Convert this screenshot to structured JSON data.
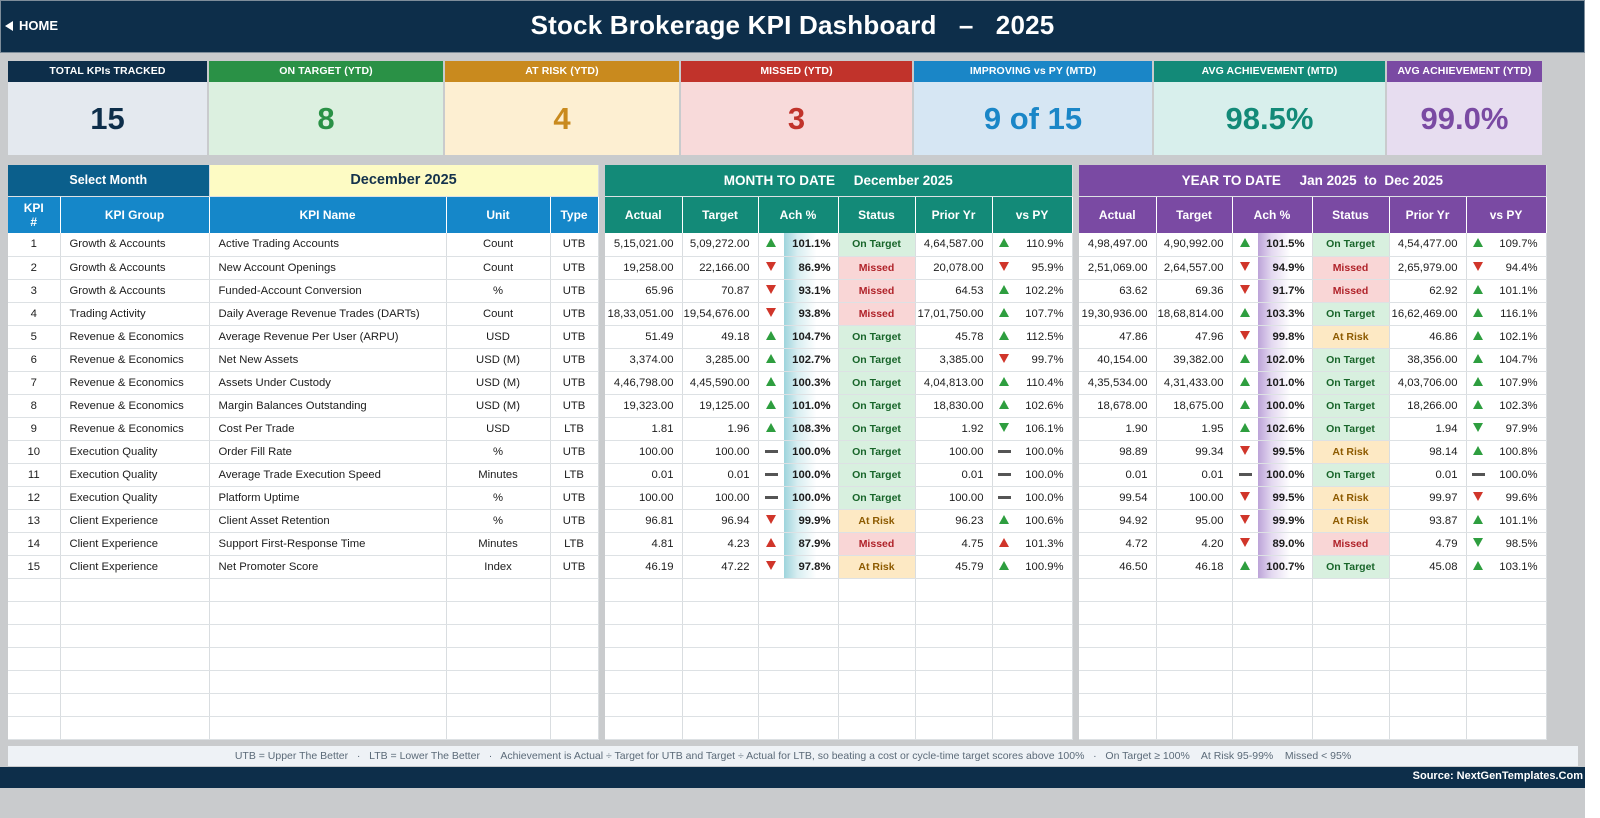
{
  "header": {
    "home_label": "HOME",
    "title": "Stock Brokerage KPI Dashboard   –   2025"
  },
  "cards": [
    {
      "label": "TOTAL KPIs TRACKED",
      "value": "15",
      "header_color": "#0d2e4a",
      "bg_color": "#e4e9ef",
      "value_color": "#0d2e4a"
    },
    {
      "label": "ON TARGET (YTD)",
      "value": "8",
      "header_color": "#2a9146",
      "bg_color": "#dcf0e0",
      "value_color": "#2a9146"
    },
    {
      "label": "AT RISK (YTD)",
      "value": "4",
      "header_color": "#c98a1e",
      "bg_color": "#fdefd2",
      "value_color": "#c98a1e"
    },
    {
      "label": "MISSED (YTD)",
      "value": "3",
      "header_color": "#c1332b",
      "bg_color": "#f8dada",
      "value_color": "#c1332b"
    },
    {
      "label": "IMPROVING vs PY (MTD)",
      "value": "9 of 15",
      "header_color": "#1a86c7",
      "bg_color": "#d6e6f3",
      "value_color": "#1a86c7"
    },
    {
      "label": "AVG ACHIEVEMENT (MTD)",
      "value": "98.5%",
      "header_color": "#138a78",
      "bg_color": "#d8efec",
      "value_color": "#138a78"
    },
    {
      "label": "AVG ACHIEVEMENT (YTD)",
      "value": "99.0%",
      "header_color": "#7a4aa3",
      "bg_color": "#e7ddf0",
      "value_color": "#7a4aa3"
    }
  ],
  "selector": {
    "label": "Select Month",
    "value": "December 2025"
  },
  "left_columns": [
    "KPI\n#",
    "KPI Group",
    "KPI Name",
    "Unit",
    "Type"
  ],
  "mtd": {
    "banner": "MONTH TO DATE     December 2025",
    "columns": [
      "Actual",
      "Target",
      "Ach %",
      "Status",
      "Prior Yr",
      "vs PY"
    ]
  },
  "ytd": {
    "banner": "YEAR TO DATE     Jan 2025  to  Dec 2025",
    "columns": [
      "Actual",
      "Target",
      "Ach %",
      "Status",
      "Prior Yr",
      "vs PY"
    ]
  },
  "rows": [
    {
      "num": "1",
      "group": "Growth & Accounts",
      "name": "Active Trading Accounts",
      "unit": "Count",
      "type": "UTB",
      "mtd": {
        "actual": "5,15,021.00",
        "target": "5,09,272.00",
        "ach_icon": "up",
        "ach": "101.1%",
        "status": "On Target",
        "prior": "4,64,587.00",
        "py_icon": "up",
        "vs_py": "110.9%"
      },
      "ytd": {
        "actual": "4,98,497.00",
        "target": "4,90,992.00",
        "ach_icon": "up",
        "ach": "101.5%",
        "status": "On Target",
        "prior": "4,54,477.00",
        "py_icon": "up",
        "vs_py": "109.7%"
      }
    },
    {
      "num": "2",
      "group": "Growth & Accounts",
      "name": "New Account Openings",
      "unit": "Count",
      "type": "UTB",
      "mtd": {
        "actual": "19,258.00",
        "target": "22,166.00",
        "ach_icon": "down",
        "ach": "86.9%",
        "status": "Missed",
        "prior": "20,078.00",
        "py_icon": "down",
        "vs_py": "95.9%"
      },
      "ytd": {
        "actual": "2,51,069.00",
        "target": "2,64,557.00",
        "ach_icon": "down",
        "ach": "94.9%",
        "status": "Missed",
        "prior": "2,65,979.00",
        "py_icon": "down",
        "vs_py": "94.4%"
      }
    },
    {
      "num": "3",
      "group": "Growth & Accounts",
      "name": "Funded-Account Conversion",
      "unit": "%",
      "type": "UTB",
      "mtd": {
        "actual": "65.96",
        "target": "70.87",
        "ach_icon": "down",
        "ach": "93.1%",
        "status": "Missed",
        "prior": "64.53",
        "py_icon": "up",
        "vs_py": "102.2%"
      },
      "ytd": {
        "actual": "63.62",
        "target": "69.36",
        "ach_icon": "down",
        "ach": "91.7%",
        "status": "Missed",
        "prior": "62.92",
        "py_icon": "up",
        "vs_py": "101.1%"
      }
    },
    {
      "num": "4",
      "group": "Trading Activity",
      "name": "Daily Average Revenue Trades (DARTs)",
      "unit": "Count",
      "type": "UTB",
      "mtd": {
        "actual": "18,33,051.00",
        "target": "19,54,676.00",
        "ach_icon": "down",
        "ach": "93.8%",
        "status": "Missed",
        "prior": "17,01,750.00",
        "py_icon": "up",
        "vs_py": "107.7%"
      },
      "ytd": {
        "actual": "19,30,936.00",
        "target": "18,68,814.00",
        "ach_icon": "up",
        "ach": "103.3%",
        "status": "On Target",
        "prior": "16,62,469.00",
        "py_icon": "up",
        "vs_py": "116.1%"
      }
    },
    {
      "num": "5",
      "group": "Revenue & Economics",
      "name": "Average Revenue Per User (ARPU)",
      "unit": "USD",
      "type": "UTB",
      "mtd": {
        "actual": "51.49",
        "target": "49.18",
        "ach_icon": "up",
        "ach": "104.7%",
        "status": "On Target",
        "prior": "45.78",
        "py_icon": "up",
        "vs_py": "112.5%"
      },
      "ytd": {
        "actual": "47.86",
        "target": "47.96",
        "ach_icon": "down",
        "ach": "99.8%",
        "status": "At Risk",
        "prior": "46.86",
        "py_icon": "up",
        "vs_py": "102.1%"
      }
    },
    {
      "num": "6",
      "group": "Revenue & Economics",
      "name": "Net New Assets",
      "unit": "USD (M)",
      "type": "UTB",
      "mtd": {
        "actual": "3,374.00",
        "target": "3,285.00",
        "ach_icon": "up",
        "ach": "102.7%",
        "status": "On Target",
        "prior": "3,385.00",
        "py_icon": "down",
        "vs_py": "99.7%"
      },
      "ytd": {
        "actual": "40,154.00",
        "target": "39,382.00",
        "ach_icon": "up",
        "ach": "102.0%",
        "status": "On Target",
        "prior": "38,356.00",
        "py_icon": "up",
        "vs_py": "104.7%"
      }
    },
    {
      "num": "7",
      "group": "Revenue & Economics",
      "name": "Assets Under Custody",
      "unit": "USD (M)",
      "type": "UTB",
      "mtd": {
        "actual": "4,46,798.00",
        "target": "4,45,590.00",
        "ach_icon": "up",
        "ach": "100.3%",
        "status": "On Target",
        "prior": "4,04,813.00",
        "py_icon": "up",
        "vs_py": "110.4%"
      },
      "ytd": {
        "actual": "4,35,534.00",
        "target": "4,31,433.00",
        "ach_icon": "up",
        "ach": "101.0%",
        "status": "On Target",
        "prior": "4,03,706.00",
        "py_icon": "up",
        "vs_py": "107.9%"
      }
    },
    {
      "num": "8",
      "group": "Revenue & Economics",
      "name": "Margin Balances Outstanding",
      "unit": "USD (M)",
      "type": "UTB",
      "mtd": {
        "actual": "19,323.00",
        "target": "19,125.00",
        "ach_icon": "up",
        "ach": "101.0%",
        "status": "On Target",
        "prior": "18,830.00",
        "py_icon": "up",
        "vs_py": "102.6%"
      },
      "ytd": {
        "actual": "18,678.00",
        "target": "18,675.00",
        "ach_icon": "up",
        "ach": "100.0%",
        "status": "On Target",
        "prior": "18,266.00",
        "py_icon": "up",
        "vs_py": "102.3%"
      }
    },
    {
      "num": "9",
      "group": "Revenue & Economics",
      "name": "Cost Per Trade",
      "unit": "USD",
      "type": "LTB",
      "mtd": {
        "actual": "1.81",
        "target": "1.96",
        "ach_icon": "up",
        "ach": "108.3%",
        "status": "On Target",
        "prior": "1.92",
        "py_icon": "down-good",
        "vs_py": "106.1%"
      },
      "ytd": {
        "actual": "1.90",
        "target": "1.95",
        "ach_icon": "up",
        "ach": "102.6%",
        "status": "On Target",
        "prior": "1.94",
        "py_icon": "down-good",
        "vs_py": "97.9%"
      }
    },
    {
      "num": "10",
      "group": "Execution Quality",
      "name": "Order Fill Rate",
      "unit": "%",
      "type": "UTB",
      "mtd": {
        "actual": "100.00",
        "target": "100.00",
        "ach_icon": "flat",
        "ach": "100.0%",
        "status": "On Target",
        "prior": "100.00",
        "py_icon": "flat",
        "vs_py": "100.0%"
      },
      "ytd": {
        "actual": "98.89",
        "target": "99.34",
        "ach_icon": "down",
        "ach": "99.5%",
        "status": "At Risk",
        "prior": "98.14",
        "py_icon": "up",
        "vs_py": "100.8%"
      }
    },
    {
      "num": "11",
      "group": "Execution Quality",
      "name": "Average Trade Execution Speed",
      "unit": "Minutes",
      "type": "LTB",
      "mtd": {
        "actual": "0.01",
        "target": "0.01",
        "ach_icon": "flat",
        "ach": "100.0%",
        "status": "On Target",
        "prior": "0.01",
        "py_icon": "flat",
        "vs_py": "100.0%"
      },
      "ytd": {
        "actual": "0.01",
        "target": "0.01",
        "ach_icon": "flat",
        "ach": "100.0%",
        "status": "On Target",
        "prior": "0.01",
        "py_icon": "flat",
        "vs_py": "100.0%"
      }
    },
    {
      "num": "12",
      "group": "Execution Quality",
      "name": "Platform Uptime",
      "unit": "%",
      "type": "UTB",
      "mtd": {
        "actual": "100.00",
        "target": "100.00",
        "ach_icon": "flat",
        "ach": "100.0%",
        "status": "On Target",
        "prior": "100.00",
        "py_icon": "flat",
        "vs_py": "100.0%"
      },
      "ytd": {
        "actual": "99.54",
        "target": "100.00",
        "ach_icon": "down",
        "ach": "99.5%",
        "status": "At Risk",
        "prior": "99.97",
        "py_icon": "down",
        "vs_py": "99.6%"
      }
    },
    {
      "num": "13",
      "group": "Client Experience",
      "name": "Client Asset Retention",
      "unit": "%",
      "type": "UTB",
      "mtd": {
        "actual": "96.81",
        "target": "96.94",
        "ach_icon": "down",
        "ach": "99.9%",
        "status": "At Risk",
        "prior": "96.23",
        "py_icon": "up",
        "vs_py": "100.6%"
      },
      "ytd": {
        "actual": "94.92",
        "target": "95.00",
        "ach_icon": "down",
        "ach": "99.9%",
        "status": "At Risk",
        "prior": "93.87",
        "py_icon": "up",
        "vs_py": "101.1%"
      }
    },
    {
      "num": "14",
      "group": "Client Experience",
      "name": "Support First-Response Time",
      "unit": "Minutes",
      "type": "LTB",
      "mtd": {
        "actual": "4.81",
        "target": "4.23",
        "ach_icon": "up-bad",
        "ach": "87.9%",
        "status": "Missed",
        "prior": "4.75",
        "py_icon": "up-bad",
        "vs_py": "101.3%"
      },
      "ytd": {
        "actual": "4.72",
        "target": "4.20",
        "ach_icon": "down",
        "ach": "89.0%",
        "status": "Missed",
        "prior": "4.79",
        "py_icon": "down-good",
        "vs_py": "98.5%"
      }
    },
    {
      "num": "15",
      "group": "Client Experience",
      "name": "Net Promoter Score",
      "unit": "Index",
      "type": "UTB",
      "mtd": {
        "actual": "46.19",
        "target": "47.22",
        "ach_icon": "down",
        "ach": "97.8%",
        "status": "At Risk",
        "prior": "45.79",
        "py_icon": "up",
        "vs_py": "100.9%"
      },
      "ytd": {
        "actual": "46.50",
        "target": "46.18",
        "ach_icon": "up",
        "ach": "100.7%",
        "status": "On Target",
        "prior": "45.08",
        "py_icon": "up",
        "vs_py": "103.1%"
      }
    }
  ],
  "footnote": "UTB = Upper The Better   ·   LTB = Lower The Better   ·   Achievement is Actual ÷ Target for UTB and Target ÷ Actual for LTB, so beating a cost or cycle-time target scores above 100%   ·   On Target ≥ 100%    At Risk 95-99%    Missed < 95%",
  "source": "Source: NextGenTemplates.Com"
}
